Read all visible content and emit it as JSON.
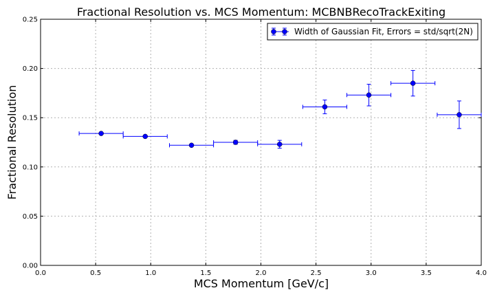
{
  "chart_data": {
    "type": "scatter",
    "title": "Fractional Resolution vs. MCS Momentum: MCBNBRecoTrackExiting",
    "xlabel": "MCS Momentum [GeV/c]",
    "ylabel": "Fractional Resolution",
    "xlim": [
      0.0,
      4.0
    ],
    "ylim": [
      0.0,
      0.25
    ],
    "x_ticks": [
      "0.0",
      "0.5",
      "1.0",
      "1.5",
      "2.0",
      "2.5",
      "3.0",
      "3.5",
      "4.0"
    ],
    "y_ticks": [
      "0.00",
      "0.05",
      "0.10",
      "0.15",
      "0.20",
      "0.25"
    ],
    "grid": true,
    "legend": "top-right",
    "series": [
      {
        "name": "Width of Gaussian Fit, Errors = std/sqrt(2N)",
        "color": "#0000ff",
        "points": [
          {
            "x": 0.55,
            "y": 0.134,
            "xerr": 0.2,
            "yerr": 0.001
          },
          {
            "x": 0.95,
            "y": 0.131,
            "xerr": 0.2,
            "yerr": 0.001
          },
          {
            "x": 1.37,
            "y": 0.122,
            "xerr": 0.2,
            "yerr": 0.001
          },
          {
            "x": 1.77,
            "y": 0.125,
            "xerr": 0.2,
            "yerr": 0.002
          },
          {
            "x": 2.17,
            "y": 0.123,
            "xerr": 0.2,
            "yerr": 0.004
          },
          {
            "x": 2.58,
            "y": 0.161,
            "xerr": 0.2,
            "yerr": 0.007
          },
          {
            "x": 2.98,
            "y": 0.173,
            "xerr": 0.2,
            "yerr": 0.011
          },
          {
            "x": 3.38,
            "y": 0.185,
            "xerr": 0.2,
            "yerr": 0.013
          },
          {
            "x": 3.8,
            "y": 0.153,
            "xerr": 0.2,
            "yerr": 0.014
          }
        ]
      }
    ]
  }
}
